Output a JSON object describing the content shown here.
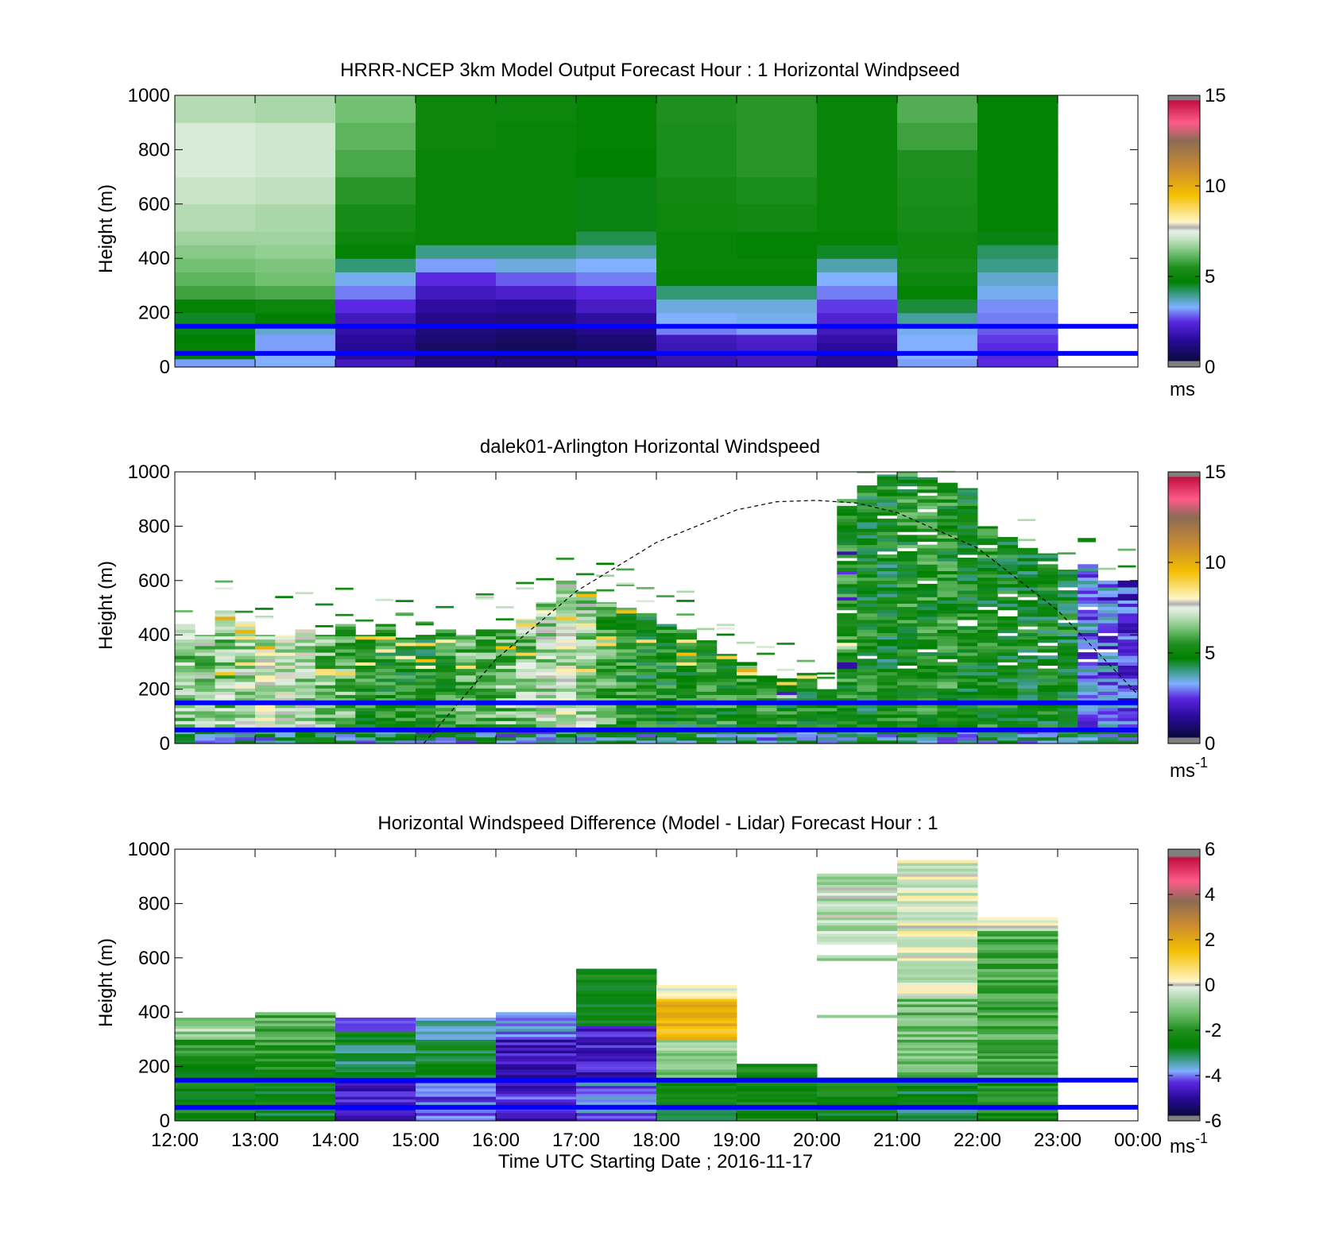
{
  "figure": {
    "xlabel": "Time UTC  Starting Date ; 2016-11-17",
    "x_ticks": [
      "12:00",
      "13:00",
      "14:00",
      "15:00",
      "16:00",
      "17:00",
      "18:00",
      "19:00",
      "20:00",
      "21:00",
      "22:00",
      "23:00",
      "00:00"
    ]
  },
  "colormaps": {
    "windspeed": [
      {
        "v": 0,
        "c": "#808080"
      },
      {
        "v": 0.3,
        "c": "#808080"
      },
      {
        "v": 0.35,
        "c": "#0a0a40"
      },
      {
        "v": 1.5,
        "c": "#2a0a9a"
      },
      {
        "v": 2.5,
        "c": "#5a28e0"
      },
      {
        "v": 3.3,
        "c": "#80b0ff"
      },
      {
        "v": 4.0,
        "c": "#3c9c8a"
      },
      {
        "v": 4.7,
        "c": "#008000"
      },
      {
        "v": 5.5,
        "c": "#1f8f1f"
      },
      {
        "v": 6.3,
        "c": "#72c072"
      },
      {
        "v": 7.0,
        "c": "#c0e0c0"
      },
      {
        "v": 7.5,
        "c": "#e8f2e6"
      },
      {
        "v": 7.7,
        "c": "#b0b0b0"
      },
      {
        "v": 8.0,
        "c": "#fff6c8"
      },
      {
        "v": 9.5,
        "c": "#f4be00"
      },
      {
        "v": 11.0,
        "c": "#c88a30"
      },
      {
        "v": 12.5,
        "c": "#8c6c54"
      },
      {
        "v": 13.5,
        "c": "#ff5a8a"
      },
      {
        "v": 14.7,
        "c": "#c01040"
      },
      {
        "v": 14.75,
        "c": "#808080"
      },
      {
        "v": 15,
        "c": "#808080"
      }
    ],
    "difference": [
      {
        "v": -6,
        "c": "#808080"
      },
      {
        "v": -5.8,
        "c": "#808080"
      },
      {
        "v": -5.75,
        "c": "#0a0a40"
      },
      {
        "v": -5,
        "c": "#2a0a9a"
      },
      {
        "v": -4.3,
        "c": "#5a28e0"
      },
      {
        "v": -3.8,
        "c": "#80b0ff"
      },
      {
        "v": -3.3,
        "c": "#3c9c8a"
      },
      {
        "v": -2.7,
        "c": "#008000"
      },
      {
        "v": -2,
        "c": "#1f8f1f"
      },
      {
        "v": -1.2,
        "c": "#72c072"
      },
      {
        "v": -0.4,
        "c": "#c0e0c0"
      },
      {
        "v": -0.1,
        "c": "#e8f2e6"
      },
      {
        "v": 0,
        "c": "#b0b0b0"
      },
      {
        "v": 0.15,
        "c": "#fff6c8"
      },
      {
        "v": 1.5,
        "c": "#f4be00"
      },
      {
        "v": 2.7,
        "c": "#c88a30"
      },
      {
        "v": 3.7,
        "c": "#8c6c54"
      },
      {
        "v": 4.6,
        "c": "#ff5a8a"
      },
      {
        "v": 5.6,
        "c": "#c01040"
      },
      {
        "v": 5.7,
        "c": "#808080"
      },
      {
        "v": 6,
        "c": "#808080"
      }
    ]
  },
  "chart_data": [
    {
      "type": "heatmap",
      "title": "HRRR-NCEP 3km Model Output   Forecast Hour : 1 Horizontal Windpseed",
      "ylabel": "Height (m)",
      "xlim": [
        12,
        24
      ],
      "ylim": [
        0,
        1000
      ],
      "y_ticks": [
        "0",
        "200",
        "400",
        "600",
        "800",
        "1000"
      ],
      "colorbar": {
        "range": [
          0,
          15
        ],
        "ticks": [
          "0",
          "5",
          "10",
          "15"
        ],
        "unit": "ms",
        "unit_sup": "",
        "colormap": "windspeed"
      },
      "horizontal_lines": [
        150,
        50
      ],
      "column_hours": [
        12,
        13,
        14,
        15,
        16,
        17,
        18,
        19,
        20,
        21,
        22
      ],
      "levels_m": [
        0,
        30,
        60,
        90,
        120,
        150,
        200,
        250,
        300,
        350,
        400,
        450,
        500,
        600,
        700,
        800,
        900,
        1000
      ],
      "values_ms": [
        [
          3.2,
          3.3,
          2.0,
          1.3,
          1.2,
          1.5,
          1.8,
          2.0,
          1.5,
          3.2,
          2.5
        ],
        [
          4.7,
          3.3,
          1.5,
          0.9,
          0.8,
          1.0,
          1.8,
          2.0,
          1.4,
          3.3,
          2.4
        ],
        [
          4.8,
          3.2,
          1.4,
          0.8,
          0.7,
          0.9,
          1.9,
          2.1,
          1.5,
          3.3,
          2.5
        ],
        [
          4.7,
          3.2,
          1.5,
          1.0,
          0.8,
          1.0,
          2.0,
          2.2,
          1.7,
          3.3,
          2.6
        ],
        [
          4.6,
          3.6,
          1.7,
          1.1,
          1.0,
          1.3,
          3.0,
          3.2,
          2.0,
          3.4,
          2.8
        ],
        [
          4.5,
          4.7,
          2.0,
          1.3,
          1.2,
          1.6,
          3.3,
          3.4,
          2.3,
          3.9,
          3.0
        ],
        [
          4.8,
          5.0,
          2.5,
          1.6,
          1.5,
          2.1,
          3.5,
          3.5,
          2.6,
          4.4,
          3.1
        ],
        [
          5.8,
          5.9,
          3.0,
          2.0,
          2.2,
          2.5,
          4.1,
          4.1,
          3.0,
          4.8,
          3.4
        ],
        [
          6.1,
          6.3,
          3.4,
          2.5,
          2.8,
          3.0,
          4.8,
          4.8,
          3.3,
          5.0,
          3.6
        ],
        [
          6.3,
          6.4,
          4.1,
          3.2,
          3.5,
          3.3,
          4.9,
          4.9,
          3.8,
          5.3,
          4.0
        ],
        [
          6.5,
          6.6,
          4.8,
          4.0,
          4.0,
          3.8,
          4.9,
          4.8,
          4.5,
          5.1,
          4.2
        ],
        [
          6.7,
          6.7,
          5.0,
          4.9,
          4.9,
          4.3,
          4.9,
          4.8,
          4.8,
          5.1,
          4.6
        ],
        [
          6.9,
          6.8,
          5.3,
          4.9,
          4.9,
          4.6,
          5.1,
          5.2,
          4.9,
          5.3,
          4.8
        ],
        [
          7.1,
          7.0,
          5.6,
          4.9,
          4.9,
          4.6,
          5.2,
          5.4,
          4.9,
          5.4,
          4.8
        ],
        [
          7.3,
          7.2,
          5.9,
          4.9,
          4.9,
          4.7,
          5.4,
          5.6,
          4.9,
          5.5,
          4.8
        ],
        [
          7.3,
          7.2,
          6.1,
          5.0,
          4.9,
          4.8,
          5.4,
          5.6,
          4.9,
          5.8,
          4.8
        ],
        [
          6.9,
          6.8,
          6.3,
          5.0,
          5.0,
          4.8,
          5.5,
          5.6,
          4.9,
          6.0,
          4.8
        ]
      ]
    },
    {
      "type": "heatmap",
      "title": "dalek01-Arlington  Horizontal Windspeed",
      "ylabel": "Height (m)",
      "xlim": [
        12,
        24
      ],
      "ylim": [
        0,
        1000
      ],
      "y_ticks": [
        "0",
        "200",
        "400",
        "600",
        "800",
        "1000"
      ],
      "colorbar": {
        "range": [
          0,
          15
        ],
        "ticks": [
          "0",
          "5",
          "10",
          "15"
        ],
        "unit": "ms",
        "unit_sup": "-1",
        "colormap": "windspeed"
      },
      "horizontal_lines": [
        150,
        50
      ],
      "column_width_h": 0.25,
      "profiles": [
        {
          "t": 12.0,
          "top": 440,
          "base": 6.5
        },
        {
          "t": 12.25,
          "top": 400,
          "base": 6.6
        },
        {
          "t": 12.5,
          "top": 490,
          "base": 6.5
        },
        {
          "t": 12.75,
          "top": 450,
          "base": 6.9
        },
        {
          "t": 13.0,
          "top": 400,
          "base": 7.2
        },
        {
          "t": 13.25,
          "top": 400,
          "base": 7.0
        },
        {
          "t": 13.5,
          "top": 420,
          "base": 6.8
        },
        {
          "t": 13.75,
          "top": 400,
          "base": 6.3
        },
        {
          "t": 14.0,
          "top": 440,
          "base": 6.0
        },
        {
          "t": 14.25,
          "top": 400,
          "base": 5.3
        },
        {
          "t": 14.5,
          "top": 440,
          "base": 5.3
        },
        {
          "t": 14.75,
          "top": 390,
          "base": 5.1
        },
        {
          "t": 15.0,
          "top": 400,
          "base": 5.1
        },
        {
          "t": 15.25,
          "top": 420,
          "base": 5.3
        },
        {
          "t": 15.5,
          "top": 400,
          "base": 6.0
        },
        {
          "t": 15.75,
          "top": 420,
          "base": 6.0
        },
        {
          "t": 16.0,
          "top": 420,
          "base": 6.2
        },
        {
          "t": 16.25,
          "top": 460,
          "base": 6.5
        },
        {
          "t": 16.5,
          "top": 520,
          "base": 6.8
        },
        {
          "t": 16.75,
          "top": 600,
          "base": 7.1
        },
        {
          "t": 17.0,
          "top": 560,
          "base": 6.7
        },
        {
          "t": 17.25,
          "top": 520,
          "base": 5.8
        },
        {
          "t": 17.5,
          "top": 500,
          "base": 5.3
        },
        {
          "t": 17.75,
          "top": 480,
          "base": 5.0
        },
        {
          "t": 18.0,
          "top": 440,
          "base": 5.1
        },
        {
          "t": 18.25,
          "top": 420,
          "base": 5.0
        },
        {
          "t": 18.5,
          "top": 380,
          "base": 5.2
        },
        {
          "t": 18.75,
          "top": 330,
          "base": 5.3
        },
        {
          "t": 19.0,
          "top": 300,
          "base": 5.5
        },
        {
          "t": 19.25,
          "top": 250,
          "base": 5.3
        },
        {
          "t": 19.5,
          "top": 240,
          "base": 5.2
        },
        {
          "t": 19.75,
          "top": 260,
          "base": 5.0
        },
        {
          "t": 20.0,
          "top": 200,
          "base": 5.3
        },
        {
          "t": 20.25,
          "top": 900,
          "base": 5.3
        },
        {
          "t": 20.5,
          "top": 950,
          "base": 5.0
        },
        {
          "t": 20.75,
          "top": 990,
          "base": 4.9
        },
        {
          "t": 21.0,
          "top": 1000,
          "base": 5.3
        },
        {
          "t": 21.25,
          "top": 980,
          "base": 5.3
        },
        {
          "t": 21.5,
          "top": 960,
          "base": 5.3
        },
        {
          "t": 21.75,
          "top": 940,
          "base": 5.1
        },
        {
          "t": 22.0,
          "top": 800,
          "base": 5.1
        },
        {
          "t": 22.25,
          "top": 760,
          "base": 5.0
        },
        {
          "t": 22.5,
          "top": 720,
          "base": 4.9
        },
        {
          "t": 22.75,
          "top": 700,
          "base": 4.9
        },
        {
          "t": 23.0,
          "top": 640,
          "base": 4.9
        },
        {
          "t": 23.25,
          "top": 660,
          "base": 3.1
        },
        {
          "t": 23.5,
          "top": 600,
          "base": 2.9
        },
        {
          "t": 23.75,
          "top": 600,
          "base": 2.5
        }
      ],
      "overlay_curve": {
        "style": "dashed",
        "x_hours": [
          15.1,
          16.0,
          17.0,
          18.0,
          19.0,
          19.5,
          20.0,
          20.5,
          21.0,
          22.0,
          23.0,
          24.0
        ],
        "heights_m": [
          0,
          310,
          560,
          740,
          860,
          890,
          895,
          885,
          850,
          720,
          490,
          180
        ]
      }
    },
    {
      "type": "heatmap",
      "title": "Horizontal Windspeed Difference (Model - Lidar) Forecast Hour : 1",
      "ylabel": "Height (m)",
      "xlim": [
        12,
        24
      ],
      "ylim": [
        0,
        1000
      ],
      "y_ticks": [
        "0",
        "200",
        "400",
        "600",
        "800",
        "1000"
      ],
      "colorbar": {
        "range": [
          -6,
          6
        ],
        "ticks": [
          "-6",
          "-4",
          "-2",
          "0",
          "2",
          "4",
          "6"
        ],
        "unit": "ms",
        "unit_sup": "-1",
        "colormap": "difference"
      },
      "horizontal_lines": [
        150,
        50
      ],
      "column_hours": [
        12,
        13,
        14,
        15,
        16,
        17,
        18,
        19,
        20,
        21,
        22
      ],
      "column_tops_m": [
        380,
        400,
        380,
        380,
        400,
        560,
        500,
        210,
        910,
        960,
        750
      ],
      "column_patterns": [
        [
          [
            0,
            200,
            -2.4
          ],
          [
            200,
            300,
            -2.1
          ],
          [
            300,
            380,
            -0.8
          ]
        ],
        [
          [
            0,
            150,
            -2.6
          ],
          [
            150,
            300,
            -1.9
          ],
          [
            300,
            400,
            -1.5
          ]
        ],
        [
          [
            0,
            150,
            -4.7
          ],
          [
            150,
            280,
            -3.2
          ],
          [
            280,
            330,
            -2.6
          ],
          [
            330,
            380,
            -4.2
          ]
        ],
        [
          [
            0,
            150,
            -4.1
          ],
          [
            150,
            300,
            -2.7
          ],
          [
            300,
            380,
            -3.7
          ]
        ],
        [
          [
            0,
            150,
            -4.4
          ],
          [
            150,
            300,
            -4.6
          ],
          [
            300,
            400,
            -3.9
          ]
        ],
        [
          [
            0,
            150,
            -4.0
          ],
          [
            150,
            350,
            -4.7
          ],
          [
            350,
            460,
            -2.8
          ],
          [
            460,
            560,
            -2.5
          ]
        ],
        [
          [
            0,
            150,
            -2.6
          ],
          [
            150,
            300,
            -1.0
          ],
          [
            300,
            450,
            1.7
          ],
          [
            450,
            500,
            0.1
          ]
        ],
        [
          [
            0,
            210,
            -2.4
          ]
        ],
        [
          [
            0,
            150,
            -2.5
          ],
          [
            150,
            700,
            -0.7
          ],
          [
            700,
            910,
            -0.5
          ]
        ],
        [
          [
            0,
            150,
            -2.8
          ],
          [
            150,
            450,
            -1.2
          ],
          [
            450,
            650,
            -0.2
          ],
          [
            650,
            750,
            0.0
          ],
          [
            750,
            960,
            -0.1
          ]
        ],
        [
          [
            0,
            150,
            -2.3
          ],
          [
            150,
            700,
            -1.6
          ],
          [
            700,
            750,
            0.0
          ]
        ]
      ]
    }
  ]
}
